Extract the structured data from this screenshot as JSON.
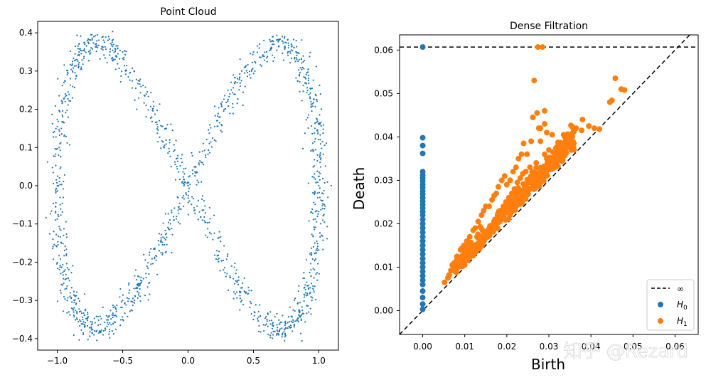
{
  "chart_data": [
    {
      "type": "scatter",
      "title": "Point Cloud",
      "xlabel": "",
      "ylabel": "",
      "xlim": [
        -1.15,
        1.15
      ],
      "ylim": [
        -0.43,
        0.43
      ],
      "xticks": [
        -1.0,
        -0.5,
        0.0,
        0.5,
        1.0
      ],
      "xtick_labels": [
        "−1.0",
        "−0.5",
        "0.0",
        "0.5",
        "1.0"
      ],
      "yticks": [
        -0.4,
        -0.3,
        -0.2,
        -0.1,
        0.0,
        0.1,
        0.2,
        0.3,
        0.4
      ],
      "ytick_labels": [
        "−0.4",
        "−0.3",
        "−0.2",
        "−0.1",
        "0.0",
        "0.1",
        "0.2",
        "0.3",
        "0.4"
      ],
      "series": [
        {
          "name": "points",
          "color": "#1f77b4",
          "shape": "figure-eight (lemniscate) noisy sample, x = sin(t), y = 0.4 sin(2t)",
          "x": [
            0.0,
            0.11,
            0.22,
            0.32,
            0.41,
            0.5,
            0.58,
            0.65,
            0.72,
            0.79,
            0.85,
            0.9,
            0.94,
            0.97,
            0.99,
            1.0,
            0.99,
            0.97,
            0.94,
            0.9,
            0.85,
            0.79,
            0.72,
            0.65,
            0.58,
            0.5,
            0.41,
            0.32,
            0.22,
            0.11,
            0.0,
            -0.11,
            -0.22,
            -0.32,
            -0.41,
            -0.5,
            -0.58,
            -0.65,
            -0.72,
            -0.79,
            -0.85,
            -0.9,
            -0.94,
            -0.97,
            -0.99,
            -1.0,
            -0.99,
            -0.97,
            -0.94,
            -0.9,
            -0.85,
            -0.79,
            -0.72,
            -0.65,
            -0.58,
            -0.5,
            -0.41,
            -0.32,
            -0.22,
            -0.11
          ],
          "y": [
            0.0,
            0.09,
            0.17,
            0.24,
            0.3,
            0.35,
            0.38,
            0.39,
            0.39,
            0.37,
            0.33,
            0.28,
            0.22,
            0.15,
            0.08,
            0.0,
            -0.08,
            -0.15,
            -0.22,
            -0.28,
            -0.33,
            -0.37,
            -0.39,
            -0.39,
            -0.38,
            -0.35,
            -0.3,
            -0.24,
            -0.17,
            -0.09,
            0.0,
            0.09,
            0.17,
            0.24,
            0.3,
            0.35,
            0.38,
            0.39,
            0.39,
            0.37,
            0.33,
            0.28,
            0.22,
            0.15,
            0.08,
            0.0,
            -0.08,
            -0.15,
            -0.22,
            -0.28,
            -0.33,
            -0.37,
            -0.39,
            -0.39,
            -0.38,
            -0.35,
            -0.3,
            -0.24,
            -0.17,
            -0.09
          ]
        }
      ]
    },
    {
      "type": "scatter",
      "title": "Dense Filtration",
      "xlabel": "Birth",
      "ylabel": "Death",
      "xlim": [
        -0.0055,
        0.0655
      ],
      "ylim": [
        -0.0055,
        0.0635
      ],
      "xticks": [
        0.0,
        0.01,
        0.02,
        0.03,
        0.04,
        0.05,
        0.06
      ],
      "xtick_labels": [
        "0.00",
        "0.01",
        "0.02",
        "0.03",
        "0.04",
        "0.05",
        "0.06"
      ],
      "yticks": [
        0.0,
        0.01,
        0.02,
        0.03,
        0.04,
        0.05,
        0.06
      ],
      "ytick_labels": [
        "0.00",
        "0.01",
        "0.02",
        "0.03",
        "0.04",
        "0.05",
        "0.06"
      ],
      "infinity_line": 0.0607,
      "diagonal": true,
      "legend_position": "lower-right",
      "legend": [
        {
          "label": "∞",
          "kind": "dashed-line",
          "color": "#000000"
        },
        {
          "label": "H",
          "sub": "0",
          "kind": "marker",
          "color": "#1f77b4"
        },
        {
          "label": "H",
          "sub": "1",
          "kind": "marker",
          "color": "#ff7f0e"
        }
      ],
      "series": [
        {
          "name": "H0",
          "color": "#1f77b4",
          "x": [
            0,
            0,
            0,
            0,
            0,
            0,
            0,
            0,
            0,
            0,
            0,
            0,
            0,
            0,
            0,
            0,
            0,
            0,
            0,
            0,
            0,
            0,
            0,
            0,
            0,
            0,
            0,
            0,
            0,
            0,
            0,
            0,
            0,
            0,
            0,
            0,
            0,
            0
          ],
          "y": [
            0.0607,
            0.0398,
            0.038,
            0.0362,
            0.032,
            0.0312,
            0.0305,
            0.0298,
            0.029,
            0.0283,
            0.0275,
            0.0268,
            0.026,
            0.0252,
            0.0244,
            0.0236,
            0.0228,
            0.022,
            0.021,
            0.02,
            0.019,
            0.018,
            0.017,
            0.016,
            0.015,
            0.014,
            0.013,
            0.012,
            0.011,
            0.01,
            0.009,
            0.008,
            0.007,
            0.006,
            0.0045,
            0.003,
            0.0015,
            0.0003
          ]
        },
        {
          "name": "H1",
          "color": "#ff7f0e",
          "x": [
            0.0274,
            0.0285,
            0.0265,
            0.0272,
            0.029,
            0.0458,
            0.0472,
            0.048,
            0.045,
            0.0395,
            0.0408,
            0.042,
            0.0445,
            0.038,
            0.0365,
            0.0378,
            0.0352,
            0.034,
            0.0325,
            0.0308,
            0.0295,
            0.028,
            0.0262,
            0.0258,
            0.0248,
            0.024,
            0.0235,
            0.0228,
            0.0222,
            0.0215,
            0.0208,
            0.02,
            0.0195,
            0.0188,
            0.018,
            0.0175,
            0.017,
            0.0165,
            0.0158,
            0.015,
            0.0145,
            0.014,
            0.0132,
            0.0125,
            0.012,
            0.0112,
            0.0105,
            0.0098,
            0.009,
            0.0082,
            0.0075,
            0.006,
            0.0052,
            0.029,
            0.03,
            0.031,
            0.032,
            0.033,
            0.0335,
            0.0345,
            0.0355,
            0.036,
            0.027,
            0.0255,
            0.0245,
            0.0238,
            0.0232,
            0.0225,
            0.0218,
            0.0212,
            0.0205,
            0.0198,
            0.0192,
            0.0185,
            0.0178,
            0.0172,
            0.0168,
            0.0162,
            0.0155,
            0.0148,
            0.0142,
            0.0136,
            0.0128,
            0.0118,
            0.0108,
            0.01,
            0.028,
            0.0295,
            0.0305,
            0.0315,
            0.0322,
            0.0338,
            0.0348,
            0.0262,
            0.025,
            0.0242,
            0.0278,
            0.0288,
            0.0302,
            0.0318,
            0.0268,
            0.0252,
            0.023,
            0.022,
            0.021,
            0.0196,
            0.0183,
            0.0172,
            0.016,
            0.0145,
            0.029,
            0.0276
          ],
          "y": [
            0.0607,
            0.0607,
            0.053,
            0.0455,
            0.046,
            0.0535,
            0.051,
            0.0508,
            0.0484,
            0.0425,
            0.042,
            0.0418,
            0.048,
            0.044,
            0.042,
            0.0415,
            0.04,
            0.039,
            0.038,
            0.0405,
            0.041,
            0.042,
            0.0445,
            0.039,
            0.036,
            0.0385,
            0.036,
            0.035,
            0.033,
            0.032,
            0.03,
            0.029,
            0.031,
            0.03,
            0.0285,
            0.027,
            0.0265,
            0.0255,
            0.024,
            0.024,
            0.023,
            0.022,
            0.0205,
            0.019,
            0.0185,
            0.017,
            0.016,
            0.015,
            0.014,
            0.012,
            0.011,
            0.0075,
            0.0065,
            0.036,
            0.037,
            0.0365,
            0.0355,
            0.036,
            0.0375,
            0.038,
            0.0385,
            0.037,
            0.034,
            0.033,
            0.032,
            0.0315,
            0.0305,
            0.0295,
            0.028,
            0.027,
            0.026,
            0.025,
            0.024,
            0.023,
            0.022,
            0.021,
            0.02,
            0.019,
            0.018,
            0.017,
            0.016,
            0.015,
            0.014,
            0.013,
            0.012,
            0.0105,
            0.039,
            0.035,
            0.034,
            0.033,
            0.0345,
            0.04,
            0.0395,
            0.029,
            0.028,
            0.027,
            0.031,
            0.032,
            0.0325,
            0.034,
            0.03,
            0.0295,
            0.0275,
            0.026,
            0.0255,
            0.0235,
            0.0225,
            0.0205,
            0.0195,
            0.0175,
            0.043,
            0.042
          ]
        }
      ]
    }
  ],
  "watermark": "知乎 @Rezard"
}
